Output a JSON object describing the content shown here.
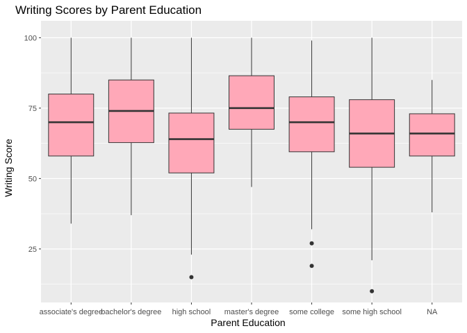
{
  "chart_data": {
    "type": "boxplot",
    "title": "Writing Scores by Parent Education",
    "xlabel": "Parent Education",
    "ylabel": "Writing Score",
    "ylim": [
      6,
      106
    ],
    "yticks": [
      25,
      50,
      75,
      100
    ],
    "grid": true,
    "fill_color": "#FFA8B8",
    "panel_color": "#EBEBEB",
    "categories": [
      "associate's degree",
      "bachelor's degree",
      "high school",
      "master's degree",
      "some college",
      "some high school",
      "NA"
    ],
    "boxes": [
      {
        "category": "associate's degree",
        "min": 34,
        "q1": 58,
        "median": 70,
        "q3": 80,
        "max": 100,
        "outliers": []
      },
      {
        "category": "bachelor's degree",
        "min": 37,
        "q1": 62.75,
        "median": 74,
        "q3": 85,
        "max": 100,
        "outliers": []
      },
      {
        "category": "high school",
        "min": 23,
        "q1": 52,
        "median": 64,
        "q3": 73.25,
        "max": 100,
        "outliers": [
          15
        ]
      },
      {
        "category": "master's degree",
        "min": 47,
        "q1": 67.5,
        "median": 75,
        "q3": 86.5,
        "max": 100,
        "outliers": []
      },
      {
        "category": "some college",
        "min": 32,
        "q1": 59.5,
        "median": 70,
        "q3": 79,
        "max": 99,
        "outliers": [
          27,
          19
        ]
      },
      {
        "category": "some high school",
        "min": 21,
        "q1": 54,
        "median": 66,
        "q3": 78,
        "max": 100,
        "outliers": [
          10
        ]
      },
      {
        "category": "NA",
        "min": 38,
        "q1": 58,
        "median": 66,
        "q3": 73,
        "max": 85,
        "outliers": []
      }
    ]
  }
}
